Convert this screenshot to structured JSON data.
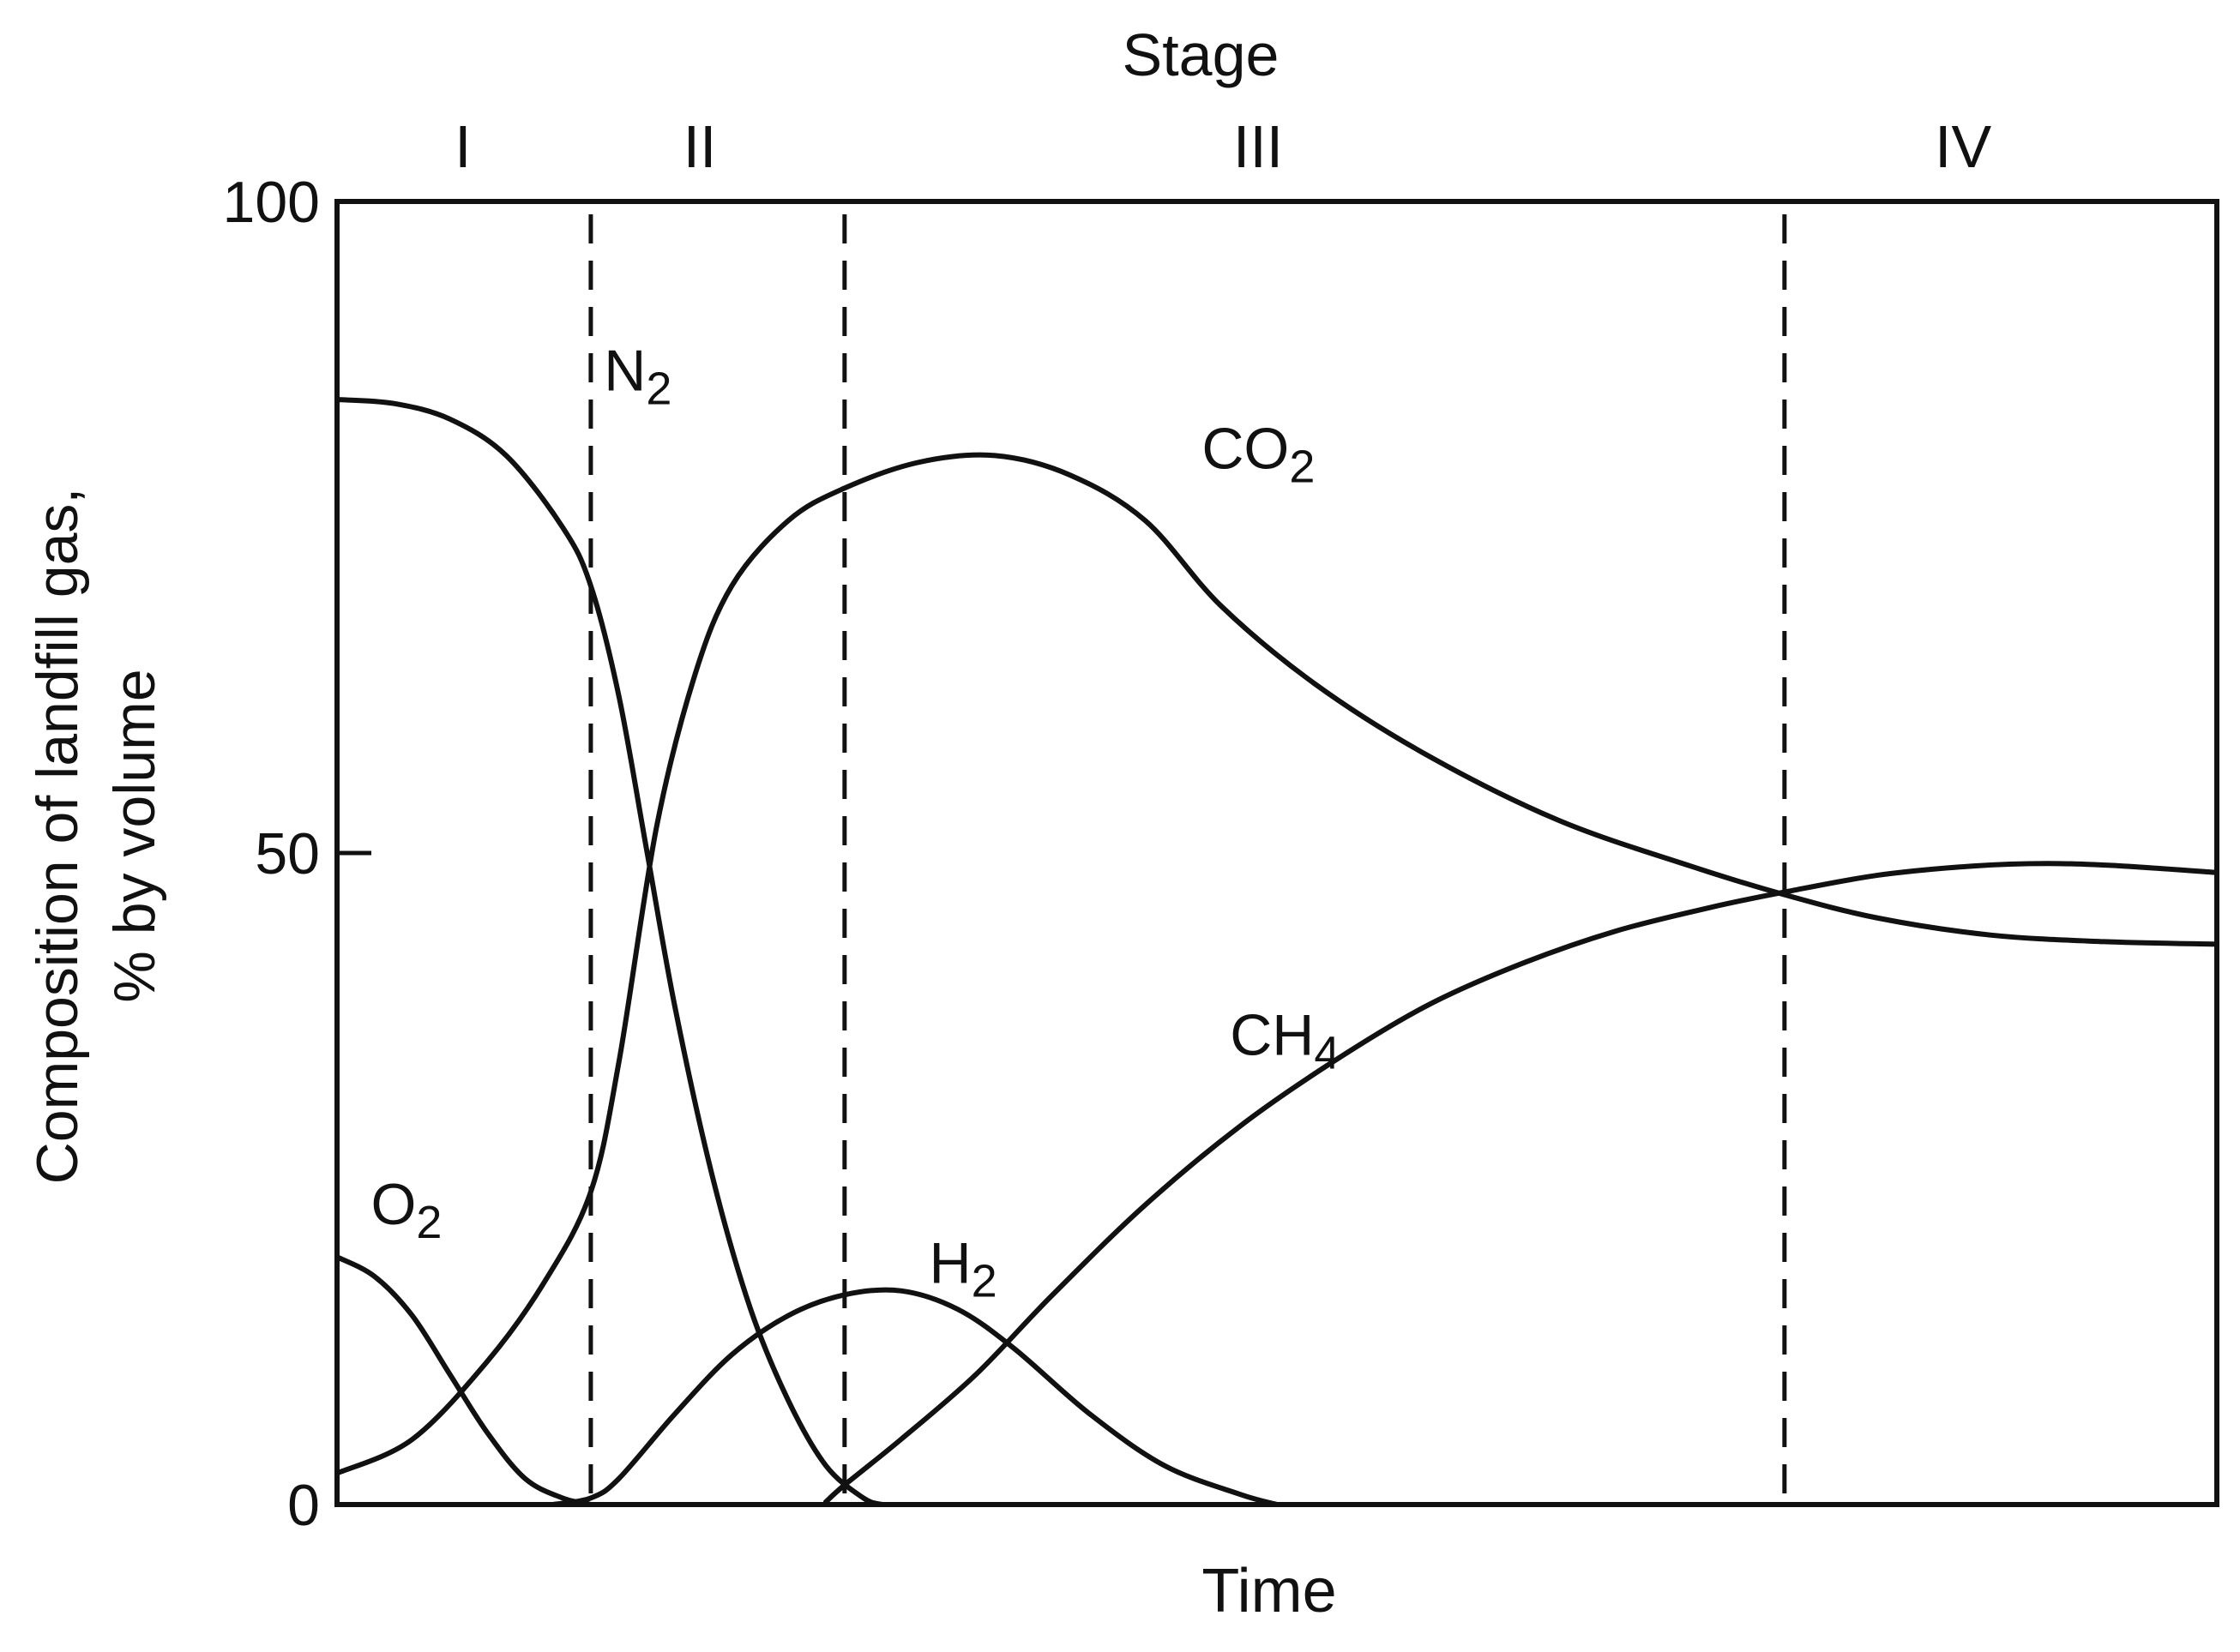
{
  "chart_data": {
    "type": "line",
    "title": "",
    "top_axis_label": "Stage",
    "xlabel": "Time",
    "ylabel_lines": [
      "Composition of landfill gas,",
      "% by volume"
    ],
    "ylim": [
      0,
      100
    ],
    "xlim": [
      0,
      100
    ],
    "y_ticks": [
      {
        "value": 0,
        "label": "0"
      },
      {
        "value": 50,
        "label": "50"
      },
      {
        "value": 100,
        "label": "100"
      }
    ],
    "stage_boundaries": [
      13.5,
      27,
      77
    ],
    "stages": [
      {
        "label": "I",
        "x": 6.7
      },
      {
        "label": "II",
        "x": 19.3
      },
      {
        "label": "III",
        "x": 49.0
      },
      {
        "label": "IV",
        "x": 86.5
      }
    ],
    "series": [
      {
        "name": "N",
        "subscript": "2",
        "label_at": [
          14.2,
          85.5
        ],
        "points": [
          [
            0,
            84.8
          ],
          [
            3,
            84.5
          ],
          [
            6,
            83.3
          ],
          [
            9,
            80.5
          ],
          [
            12,
            75
          ],
          [
            13.5,
            70.5
          ],
          [
            15,
            62
          ],
          [
            16.5,
            50
          ],
          [
            18,
            38
          ],
          [
            20,
            25
          ],
          [
            22,
            15
          ],
          [
            24,
            8
          ],
          [
            26,
            3
          ],
          [
            28,
            0.5
          ],
          [
            29,
            0
          ]
        ]
      },
      {
        "name": "CO",
        "subscript": "2",
        "label_at": [
          46,
          79.5
        ],
        "points": [
          [
            0,
            2.4
          ],
          [
            4,
            5
          ],
          [
            8,
            11
          ],
          [
            11,
            17
          ],
          [
            13.5,
            24
          ],
          [
            15,
            34
          ],
          [
            17,
            52
          ],
          [
            19,
            63.5
          ],
          [
            21,
            70.5
          ],
          [
            24,
            75.5
          ],
          [
            27,
            78
          ],
          [
            31,
            80
          ],
          [
            35,
            80.5
          ],
          [
            39,
            79
          ],
          [
            43,
            75.5
          ],
          [
            47,
            69
          ],
          [
            52,
            63
          ],
          [
            58,
            57.5
          ],
          [
            65,
            52.5
          ],
          [
            72,
            49
          ],
          [
            77,
            46.8
          ],
          [
            82,
            45
          ],
          [
            88,
            43.7
          ],
          [
            94,
            43.2
          ],
          [
            100,
            43
          ]
        ]
      },
      {
        "name": "CH",
        "subscript": "4",
        "label_at": [
          47.5,
          34.5
        ],
        "points": [
          [
            26,
            0.2
          ],
          [
            27,
            1.5
          ],
          [
            30,
            5
          ],
          [
            34,
            10
          ],
          [
            38,
            16
          ],
          [
            43,
            23
          ],
          [
            48,
            29
          ],
          [
            53,
            34
          ],
          [
            58,
            38.3
          ],
          [
            63,
            41.5
          ],
          [
            68,
            44
          ],
          [
            73,
            45.8
          ],
          [
            77,
            47
          ],
          [
            82,
            48.3
          ],
          [
            87,
            49
          ],
          [
            91,
            49.2
          ],
          [
            95,
            49
          ],
          [
            100,
            48.5
          ]
        ]
      },
      {
        "name": "O",
        "subscript": "2",
        "label_at": [
          1.8,
          21.5
        ],
        "points": [
          [
            0,
            19
          ],
          [
            2,
            17.5
          ],
          [
            4,
            14.5
          ],
          [
            6,
            10
          ],
          [
            8,
            5.5
          ],
          [
            10,
            2
          ],
          [
            12,
            0.5
          ],
          [
            13.5,
            0
          ]
        ]
      },
      {
        "name": "H",
        "subscript": "2",
        "label_at": [
          31.5,
          17
        ],
        "points": [
          [
            11.5,
            0
          ],
          [
            13.5,
            0.5
          ],
          [
            15,
            2
          ],
          [
            18,
            7
          ],
          [
            21,
            11.5
          ],
          [
            24,
            14.5
          ],
          [
            27,
            16.1
          ],
          [
            30,
            16.4
          ],
          [
            33,
            15
          ],
          [
            36,
            12
          ],
          [
            40,
            7
          ],
          [
            44,
            3
          ],
          [
            48,
            0.8
          ],
          [
            50,
            0
          ]
        ]
      }
    ]
  }
}
